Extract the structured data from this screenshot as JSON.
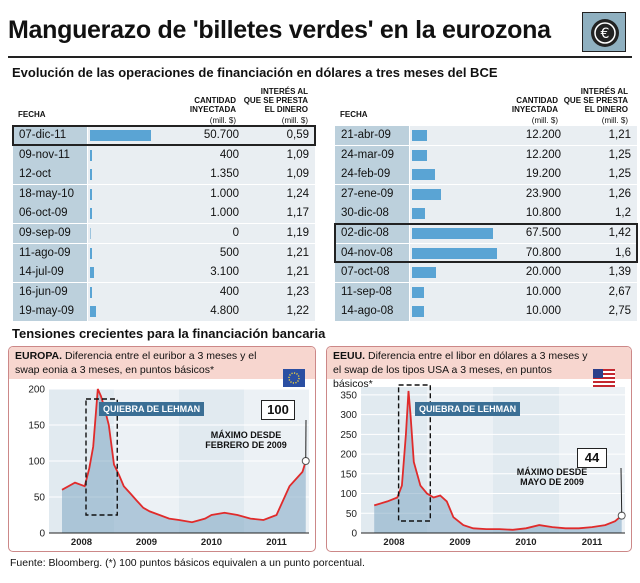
{
  "title": "Manguerazo de 'billetes verdes' en la eurozona",
  "logo_icon": "euro-coin-icon",
  "subtitle": "Evolución de las operaciones de financiación en dólares a tres meses del BCE",
  "table_headers": {
    "fecha": "FECHA",
    "cantidad": "CANTIDAD\nINYECTADA",
    "cantidad_unit": "(mill. $)",
    "interes": "INTERÉS AL\nQUE SE PRESTA\nEL DINERO",
    "interes_unit": "(mill. $)"
  },
  "left_table": [
    {
      "date": "07-dic-11",
      "amount": "50.700",
      "rate": "0,59",
      "value": 50700,
      "highlight": true
    },
    {
      "date": "09-nov-11",
      "amount": "400",
      "rate": "1,09",
      "value": 400
    },
    {
      "date": "12-oct",
      "amount": "1.350",
      "rate": "1,09",
      "value": 1350
    },
    {
      "date": "18-may-10",
      "amount": "1.000",
      "rate": "1,24",
      "value": 1000
    },
    {
      "date": "06-oct-09",
      "amount": "1.000",
      "rate": "1,17",
      "value": 1000
    },
    {
      "date": "09-sep-09",
      "amount": "0",
      "rate": "1,19",
      "value": 0
    },
    {
      "date": "11-ago-09",
      "amount": "500",
      "rate": "1,21",
      "value": 500
    },
    {
      "date": "14-jul-09",
      "amount": "3.100",
      "rate": "1,21",
      "value": 3100
    },
    {
      "date": "16-jun-09",
      "amount": "400",
      "rate": "1,23",
      "value": 400
    },
    {
      "date": "19-may-09",
      "amount": "4.800",
      "rate": "1,22",
      "value": 4800
    }
  ],
  "right_table": [
    {
      "date": "21-abr-09",
      "amount": "12.200",
      "rate": "1,21",
      "value": 12200
    },
    {
      "date": "24-mar-09",
      "amount": "12.200",
      "rate": "1,25",
      "value": 12200
    },
    {
      "date": "24-feb-09",
      "amount": "19.200",
      "rate": "1,25",
      "value": 19200
    },
    {
      "date": "27-ene-09",
      "amount": "23.900",
      "rate": "1,26",
      "value": 23900
    },
    {
      "date": "30-dic-08",
      "amount": "10.800",
      "rate": "1,2",
      "value": 10800
    },
    {
      "date": "02-dic-08",
      "amount": "67.500",
      "rate": "1,42",
      "value": 67500,
      "highlight": true
    },
    {
      "date": "04-nov-08",
      "amount": "70.800",
      "rate": "1,6",
      "value": 70800,
      "highlight": true
    },
    {
      "date": "07-oct-08",
      "amount": "20.000",
      "rate": "1,39",
      "value": 20000
    },
    {
      "date": "11-sep-08",
      "amount": "10.000",
      "rate": "2,67",
      "value": 10000
    },
    {
      "date": "14-ago-08",
      "amount": "10.000",
      "rate": "2,75",
      "value": 10000
    }
  ],
  "section_title": "Tensiones crecientes para la financiación bancaria",
  "panels": [
    {
      "region": "EUROPA.",
      "text": "Diferencia entre el euribor a 3 meses y el swap eonia a 3 meses, en puntos básicos*",
      "flag_icon": "eu-flag-icon",
      "lehman_label": "QUIEBRA DE LEHMAN",
      "max_value": "100",
      "max_label": "MÁXIMO DESDE\nFEBRERO DE 2009"
    },
    {
      "region": "EEUU.",
      "text": "Diferencia entre el libor en dólares a 3 meses y el swap de los tipos USA a 3 meses, en puntos básicos*",
      "flag_icon": "us-flag-icon",
      "lehman_label": "QUIEBRA DE LEHMAN",
      "max_value": "44",
      "max_label": "MÁXIMO DESDE\nMAYO DE 2009"
    }
  ],
  "chart_data": [
    {
      "type": "area",
      "title": "EUROPA",
      "x": [
        2008.2,
        2008.4,
        2008.55,
        2008.62,
        2008.68,
        2008.75,
        2008.8,
        2008.85,
        2008.92,
        2009.0,
        2009.08,
        2009.15,
        2009.25,
        2009.35,
        2009.45,
        2009.55,
        2009.7,
        2009.85,
        2010.0,
        2010.2,
        2010.4,
        2010.5,
        2010.7,
        2010.9,
        2011.1,
        2011.3,
        2011.5,
        2011.6,
        2011.7,
        2011.8,
        2011.9,
        2011.95
      ],
      "y": [
        60,
        70,
        65,
        90,
        120,
        200,
        190,
        175,
        150,
        95,
        80,
        65,
        55,
        45,
        35,
        30,
        25,
        20,
        18,
        15,
        20,
        25,
        28,
        25,
        20,
        18,
        25,
        45,
        65,
        75,
        85,
        100
      ],
      "yticks": [
        0,
        50,
        100,
        150,
        200
      ],
      "ylim": [
        0,
        200
      ],
      "xticks": [
        "2008",
        "2009",
        "2010",
        "2011"
      ],
      "xrange": [
        2008.0,
        2012.0
      ]
    },
    {
      "type": "area",
      "title": "EEUU",
      "x": [
        2008.2,
        2008.4,
        2008.55,
        2008.62,
        2008.68,
        2008.72,
        2008.75,
        2008.8,
        2008.9,
        2009.0,
        2009.1,
        2009.2,
        2009.3,
        2009.4,
        2009.55,
        2009.7,
        2009.9,
        2010.1,
        2010.3,
        2010.5,
        2010.7,
        2010.9,
        2011.1,
        2011.3,
        2011.5,
        2011.7,
        2011.85,
        2011.95
      ],
      "y": [
        70,
        80,
        90,
        120,
        250,
        360,
        300,
        180,
        120,
        100,
        90,
        95,
        80,
        40,
        20,
        12,
        10,
        10,
        8,
        12,
        20,
        15,
        12,
        12,
        15,
        20,
        30,
        44
      ],
      "yticks": [
        0,
        50,
        100,
        150,
        200,
        250,
        300,
        350
      ],
      "ylim": [
        0,
        370
      ],
      "xticks": [
        "2008",
        "2009",
        "2010",
        "2011"
      ],
      "xrange": [
        2008.0,
        2012.0
      ]
    }
  ],
  "footer": "Fuente: Bloomberg. (*) 100 puntos básicos equivalen a un punto porcentual."
}
